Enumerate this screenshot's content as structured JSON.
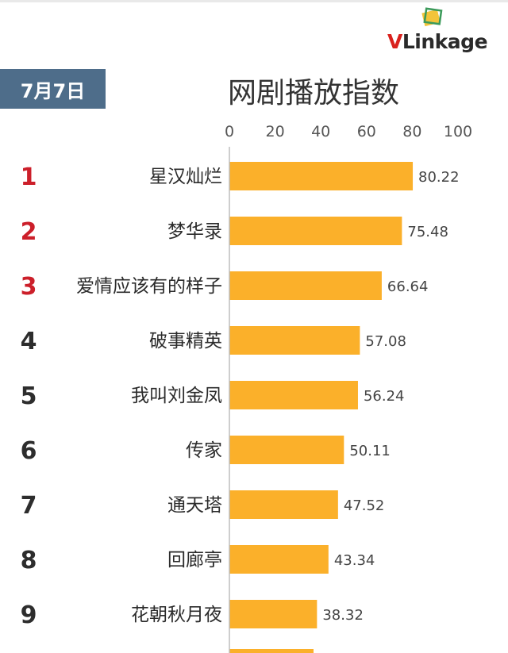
{
  "brand": {
    "logo_v": "V",
    "logo_rest": "Link",
    "logo_tail": "age"
  },
  "date_label": "7月7日",
  "colors": {
    "bar": "#fbb02a",
    "rank_top": "#cc1f2a",
    "rank_other": "#2d2d2d",
    "badge_bg": "#4e6d8a",
    "brand_red": "#d9211d"
  },
  "chart_data": {
    "type": "bar",
    "orientation": "horizontal",
    "title": "网剧播放指数",
    "xlim": [
      0,
      100
    ],
    "ticks": [
      0,
      20,
      40,
      60,
      80,
      100
    ],
    "tick_position": "top",
    "grid": false,
    "ranks": [
      "1",
      "2",
      "3",
      "4",
      "5",
      "6",
      "7",
      "8",
      "9"
    ],
    "categories": [
      "星汉灿烂",
      "梦华录",
      "爱情应该有的样子",
      "破事精英",
      "我叫刘金凤",
      "传家",
      "通天塔",
      "回廊亭",
      "花朝秋月夜"
    ],
    "values": [
      80.22,
      75.48,
      66.64,
      57.08,
      56.24,
      50.11,
      47.52,
      43.34,
      38.32
    ],
    "value_labels": [
      "80.22",
      "75.48",
      "66.64",
      "57.08",
      "56.24",
      "50.11",
      "47.52",
      "43.34",
      "38.32"
    ]
  }
}
